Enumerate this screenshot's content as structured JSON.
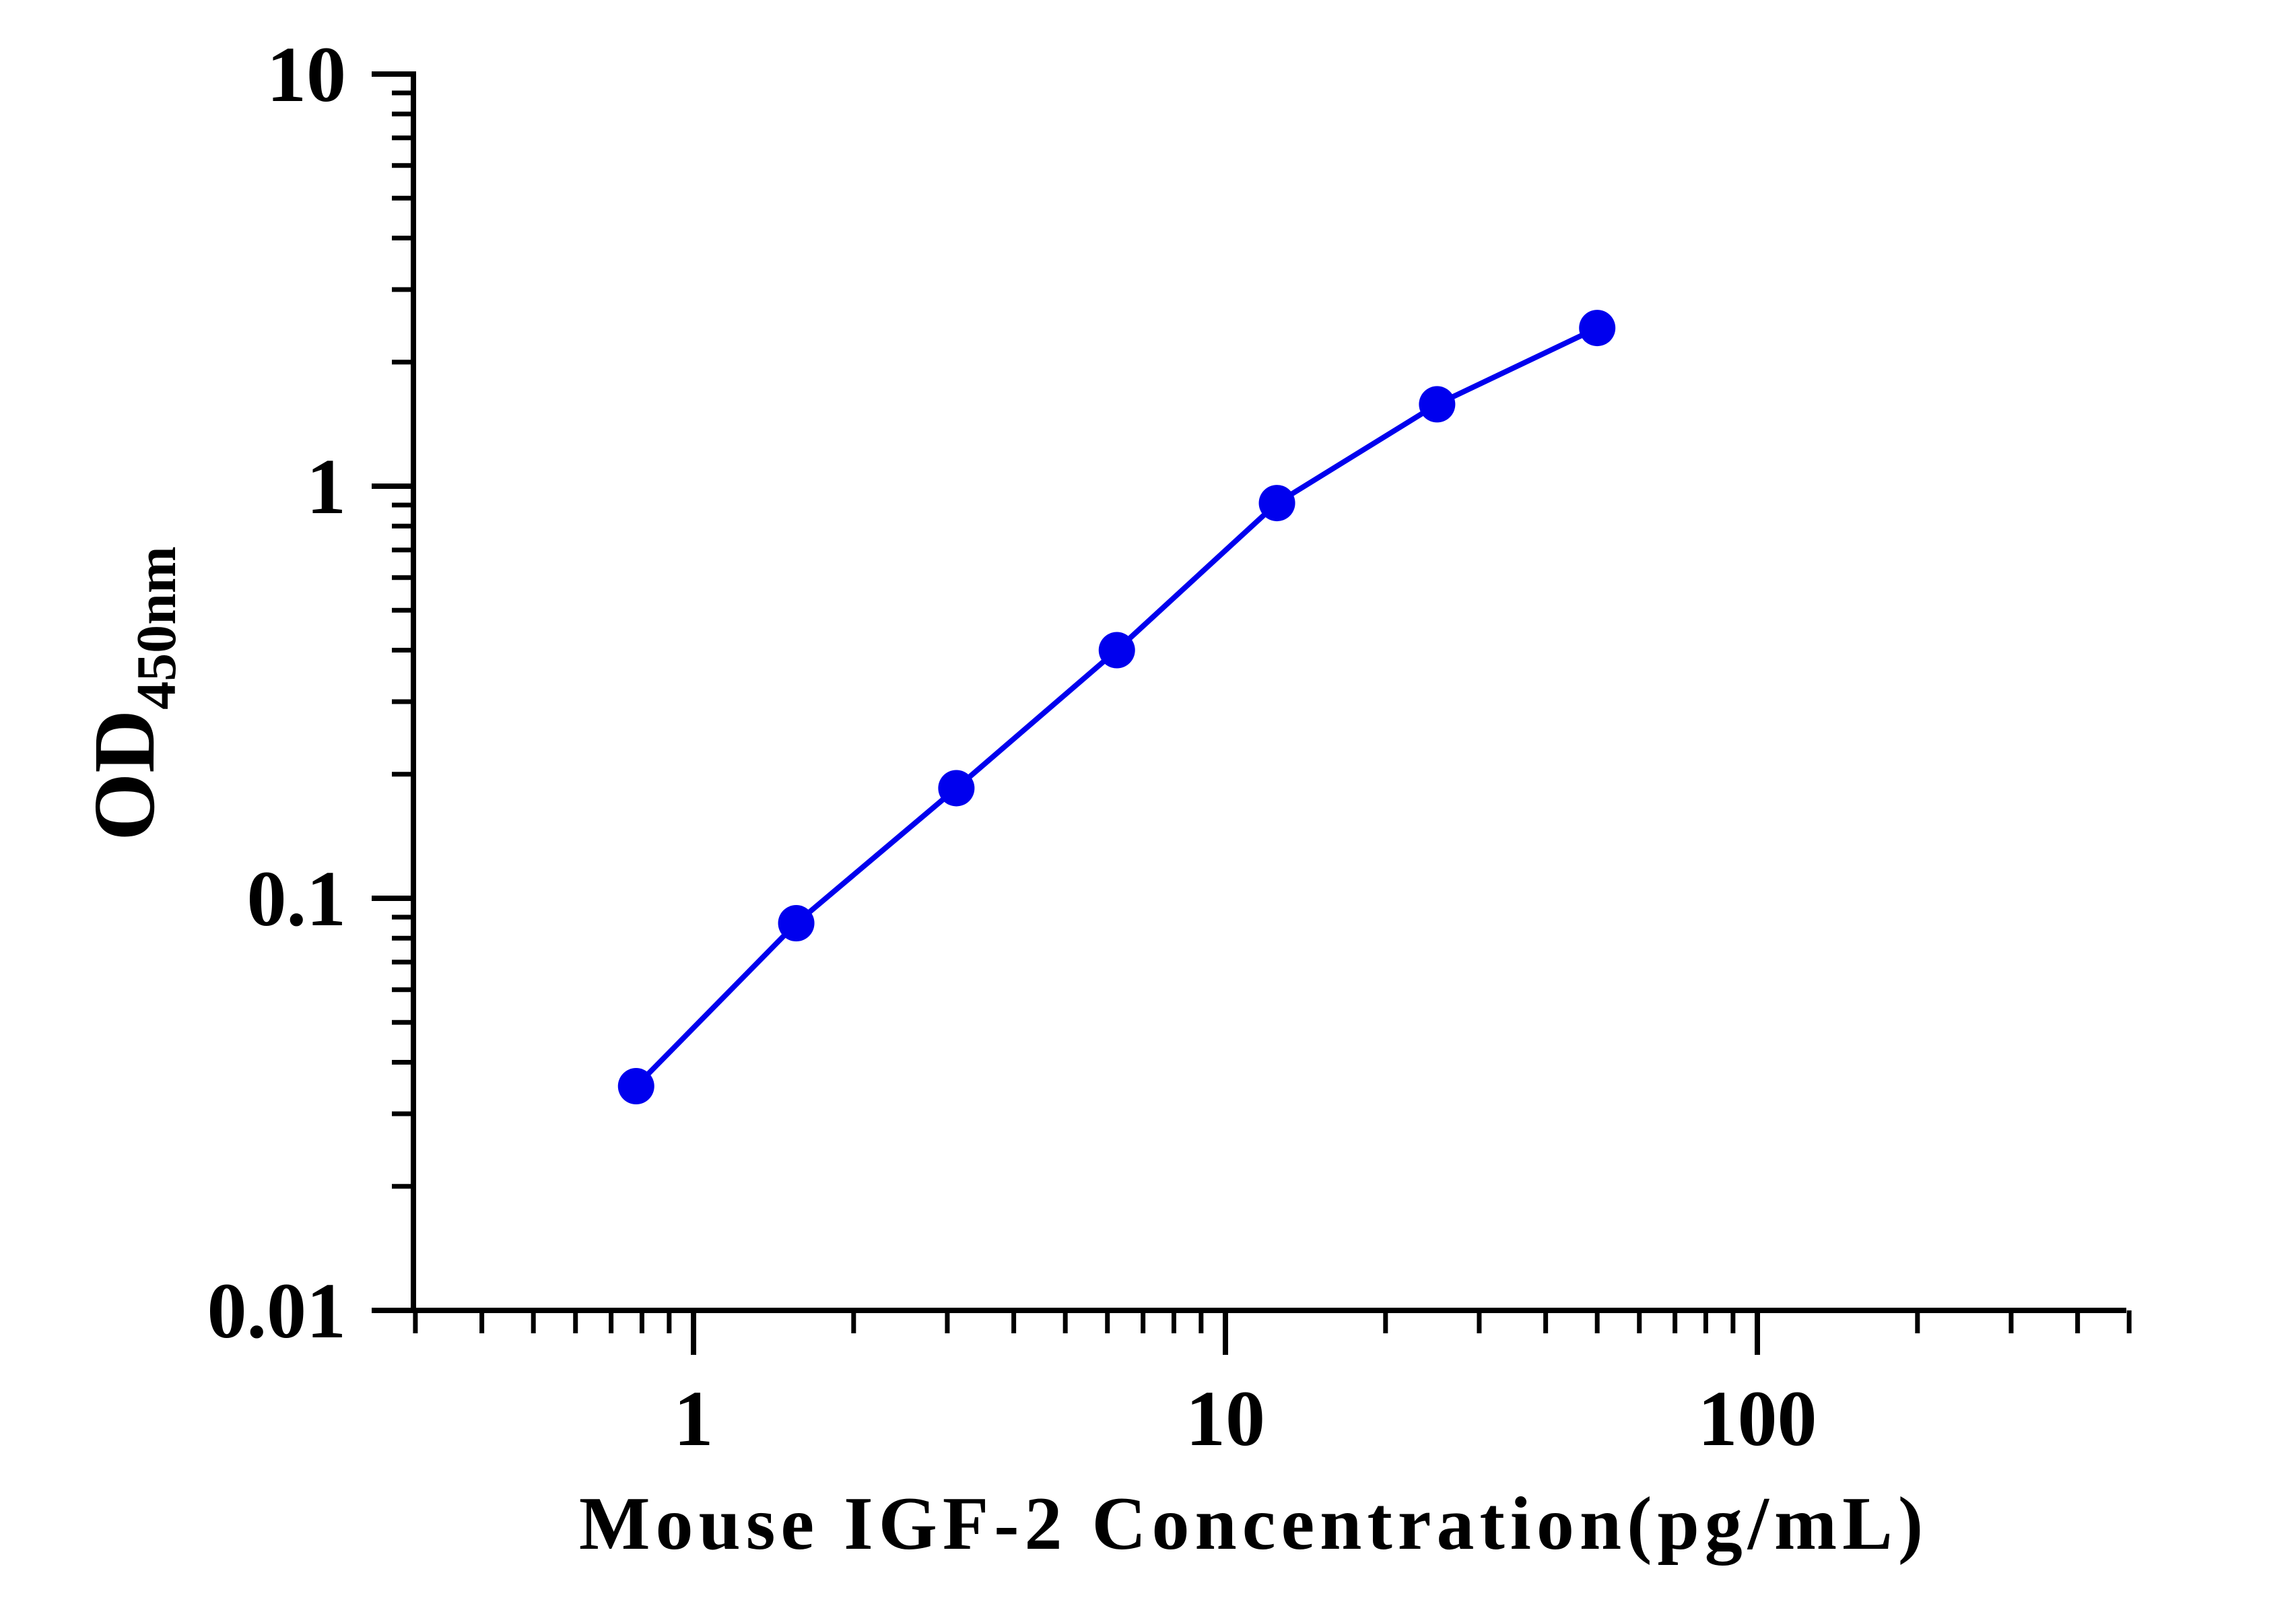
{
  "chart_data": {
    "type": "line",
    "xlabel": "Mouse IGF-2 Concentration(pg/mL)",
    "ylabel": {
      "main": "OD",
      "subscript": "450nm"
    },
    "x_scale": "log",
    "y_scale": "log",
    "xlim": [
      0.3,
      550
    ],
    "ylim": [
      0.01,
      10
    ],
    "x_tick_labels": [
      "1",
      "10",
      "100"
    ],
    "y_tick_labels": [
      "10",
      "1",
      "0.1",
      "0.01"
    ],
    "grid": false,
    "legend": "none",
    "series": [
      {
        "color": "#0000ee",
        "x": [
          0.78,
          1.56,
          3.12,
          6.25,
          12.5,
          25,
          50
        ],
        "y": [
          0.035,
          0.087,
          0.185,
          0.4,
          0.91,
          1.58,
          2.42
        ]
      }
    ]
  }
}
